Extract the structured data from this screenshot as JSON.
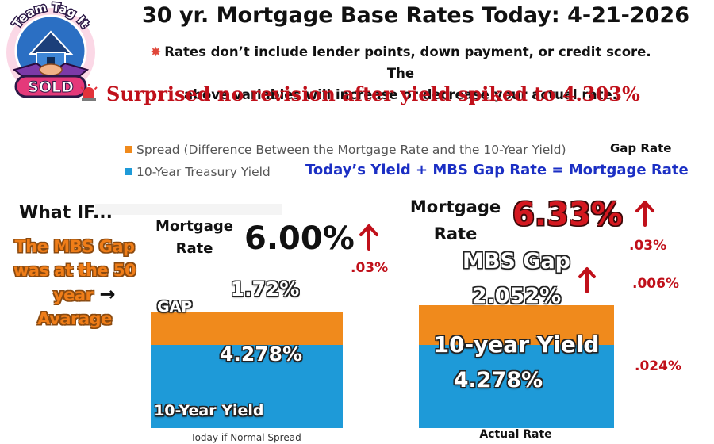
{
  "logo": {
    "top_text": "Team Tag It",
    "badge_text": "SOLD"
  },
  "header": {
    "title": "30 yr. Mortgage Base Rates Today: 4-21-2026",
    "notice_line1": "Rates don’t include lender points, down payment, or credit score. The",
    "notice_line2": "above variables will increase or decrease your actual rate.",
    "headline": "Surprised no revision after yield spiked to 4.303%"
  },
  "legend": {
    "spread": "Spread (Difference Between the Mortgage Rate and the 10-Year Yield)",
    "treasury": "10-Year Treasury Yield",
    "gap_rate": "Gap Rate",
    "formula": "Today’s  Yield +  MBS Gap Rate = Mortgage Rate"
  },
  "left": {
    "what_if": "What IF...",
    "note_line1": "The MBS Gap",
    "note_line2": "was at the 50",
    "note_line3": "year",
    "note_arrow": "→",
    "note_line4": "Avarage",
    "mortgage_label_line1": "Mortgage",
    "mortgage_label_line2": "Rate",
    "mortgage_rate": "6.00%",
    "delta": ".03%"
  },
  "right": {
    "mortgage_label_line1": "Mortgage",
    "mortgage_label_line2": "Rate",
    "mortgage_rate": "6.33%",
    "delta_rate": ".03%",
    "delta_gap": ".006%",
    "delta_yield": ".024%"
  },
  "colors": {
    "spread": "#f08a1c",
    "treasury": "#1e9ad8",
    "accent_red": "#c0101a",
    "formula_blue": "#1b2fc4"
  },
  "chart_data": {
    "type": "bar",
    "stacked": true,
    "categories": [
      "Today if Normal Spread",
      "Actual Rate"
    ],
    "series": [
      {
        "name": "10-Year Treasury Yield",
        "values": [
          4.278,
          4.278
        ],
        "labels": [
          "4.278%",
          "4.278%"
        ],
        "segment_titles": [
          "10-Year Yield",
          "10-year Yield"
        ]
      },
      {
        "name": "Spread (Difference Between the Mortgage Rate and the 10-Year Yield)",
        "values": [
          1.72,
          2.052
        ],
        "labels": [
          "1.72%",
          "2.052%"
        ],
        "segment_titles": [
          "GAP",
          "MBS Gap"
        ]
      }
    ],
    "totals": [
      6.0,
      6.33
    ],
    "legend_position": "top-left",
    "grid": false
  }
}
